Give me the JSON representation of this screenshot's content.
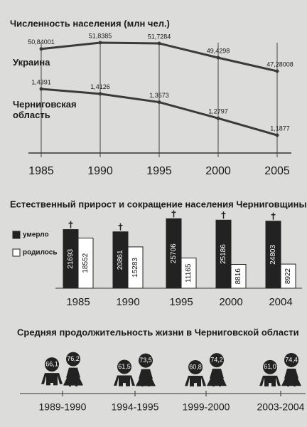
{
  "chart_data": [
    {
      "type": "line",
      "title": "Численность населения (млн чел.)",
      "categories": [
        "1985",
        "1990",
        "1995",
        "2000",
        "2005"
      ],
      "series": [
        {
          "name": "Украина",
          "color": "#3a3a3a",
          "values": [
            50.84001,
            51.8385,
            51.7284,
            49.4298,
            47.28008
          ],
          "value_labels": [
            "50,84001",
            "51,8385",
            "51,7284",
            "49,4298",
            "47,28008"
          ]
        },
        {
          "name": "Черниговская область",
          "color": "#3a3a3a",
          "values": [
            1.4391,
            1.4126,
            1.3673,
            1.2797,
            1.1877
          ],
          "value_labels": [
            "1,4391",
            "1,4126",
            "1,3673",
            "1,2797",
            "1,1877"
          ]
        }
      ]
    },
    {
      "type": "bar",
      "title": "Естественный прирост и сокращение населения Черниговщины",
      "categories": [
        "1985",
        "1990",
        "1995",
        "2000",
        "2004"
      ],
      "series": [
        {
          "name": "умерло",
          "color": "#222222",
          "values": [
            21693,
            20861,
            25706,
            25186,
            24803
          ]
        },
        {
          "name": "родилось",
          "color": "#ffffff",
          "values": [
            18552,
            15283,
            11165,
            8816,
            8922
          ]
        }
      ]
    },
    {
      "type": "pictogram",
      "title": "Средняя продолжительность жизни  в Черниговской области",
      "categories": [
        "1989-1990",
        "1994-1995",
        "1999-2000",
        "2003-2004"
      ],
      "series": [
        {
          "color": "#222222",
          "values": [
            66.1,
            61.5,
            60.8,
            61.0
          ],
          "value_labels": [
            "66,1",
            "61,5",
            "60,8",
            "61,0"
          ]
        },
        {
          "color": "#222222",
          "values": [
            76.2,
            73.5,
            74.2,
            74.4
          ],
          "value_labels": [
            "76,2",
            "73,5",
            "74,2",
            "74,4"
          ]
        }
      ]
    }
  ]
}
